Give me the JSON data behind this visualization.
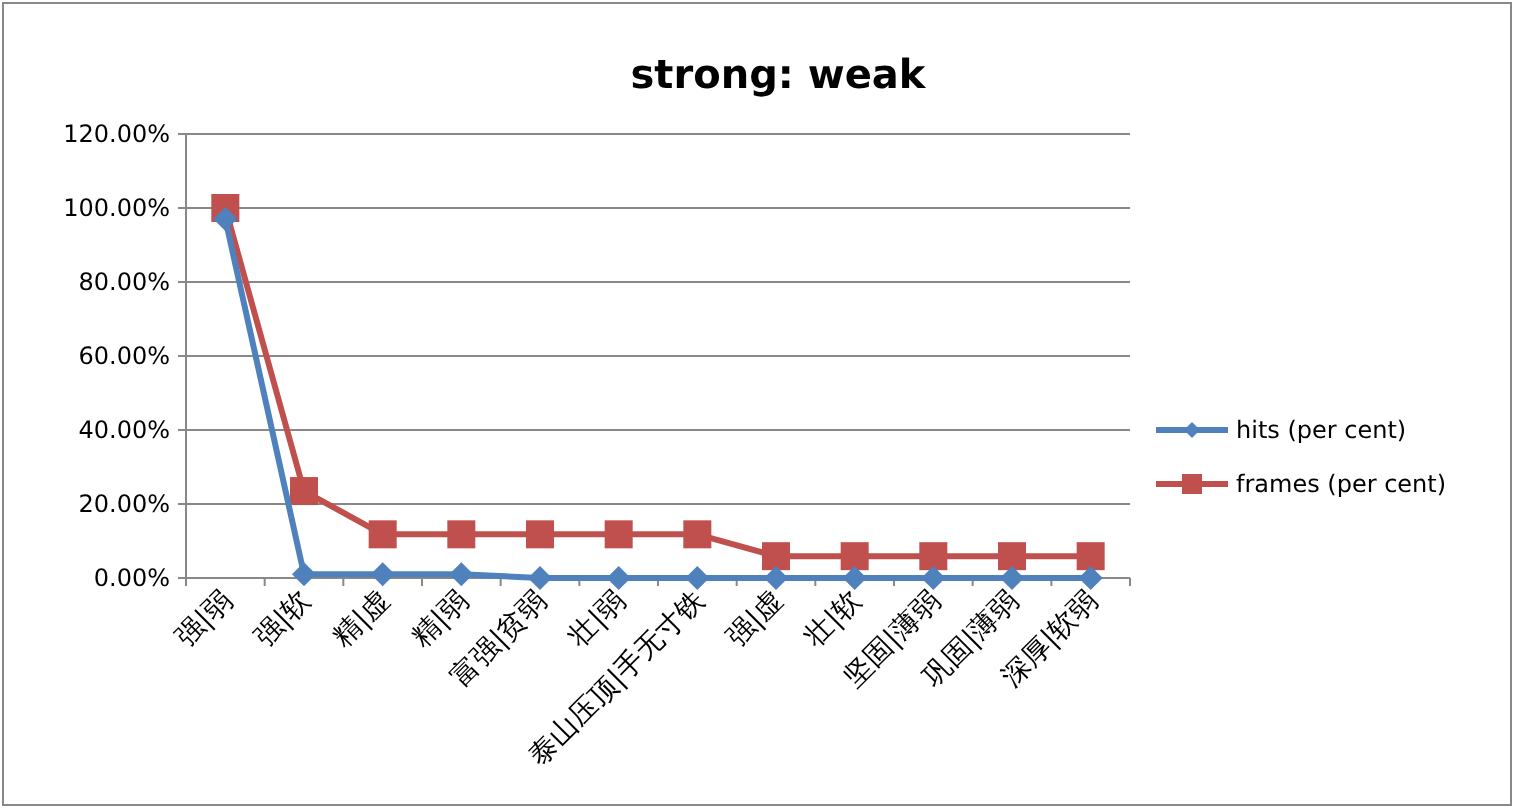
{
  "chart_data": {
    "type": "line",
    "title": "strong: weak",
    "categories": [
      "强|弱",
      "强|软",
      "精|虚",
      "精|弱",
      "富强|贫弱",
      "壮|弱",
      "泰山压顶|手无寸铁",
      "强|虚",
      "壮|软",
      "坚固|薄弱",
      "巩固|薄弱",
      "深厚|软弱"
    ],
    "series": [
      {
        "name": "hits (per cent)",
        "color": "#4f81bd",
        "marker": "diamond",
        "values": [
          97,
          1,
          1,
          1,
          0,
          0,
          0,
          0,
          0,
          0,
          0,
          0
        ]
      },
      {
        "name": "frames (per cent)",
        "color": "#c0504d",
        "marker": "square",
        "values": [
          100,
          23.5,
          11.8,
          11.8,
          11.8,
          11.8,
          11.8,
          5.9,
          5.9,
          5.9,
          5.9,
          5.9
        ]
      }
    ],
    "ylim": [
      0,
      120
    ],
    "yticks": [
      {
        "value": 0,
        "label": "0.00%"
      },
      {
        "value": 20,
        "label": "20.00%"
      },
      {
        "value": 40,
        "label": "40.00%"
      },
      {
        "value": 60,
        "label": "60.00%"
      },
      {
        "value": 80,
        "label": "80.00%"
      },
      {
        "value": 100,
        "label": "100.00%"
      },
      {
        "value": 120,
        "label": "120.00%"
      }
    ],
    "grid": "y",
    "legend": "right"
  }
}
